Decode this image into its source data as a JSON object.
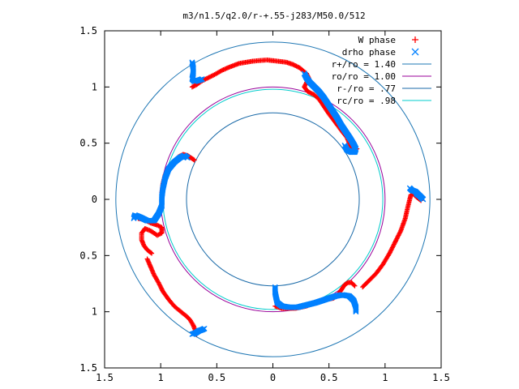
{
  "chart_data": {
    "type": "scatter",
    "title": "m3/n1.5/q2.0/r-+.55-j283/M50.0/512",
    "xlabel": "",
    "ylabel": "",
    "xlim": [
      -1.5,
      1.5
    ],
    "ylim": [
      -1.5,
      1.5
    ],
    "x_ticks": [
      -1.5,
      -1,
      -0.5,
      0,
      0.5,
      1,
      1.5
    ],
    "x_tick_labels": [
      "1.5",
      "1",
      "0.5",
      "0",
      "0.5",
      "1",
      "1.5"
    ],
    "y_ticks": [
      1.5,
      1,
      0.5,
      0,
      -0.5,
      -1,
      -1.5
    ],
    "y_tick_labels": [
      "1.5",
      "1",
      "0.5",
      "0",
      "0.5",
      "1",
      "1.5"
    ],
    "grid": false,
    "legend_position": "top-right",
    "colors": {
      "w_phase": "#ff0000",
      "drho_phase": "#0080ff",
      "r_plus": "#1f77b4",
      "r_o": "#990099",
      "r_minus": "#1a6aa8",
      "r_c": "#00cccc"
    },
    "circles": [
      {
        "label": "r+/ro = 1.40",
        "radius": 1.4,
        "color": "#1f77b4"
      },
      {
        "label": "ro/ro = 1.00",
        "radius": 1.0,
        "color": "#990099"
      },
      {
        "label": "r-/ro = .77",
        "radius": 0.77,
        "color": "#1a6aa8"
      },
      {
        "label": "rc/ro = .98",
        "radius": 0.98,
        "color": "#00cccc"
      }
    ],
    "series": [
      {
        "name": "W phase",
        "marker": "plus",
        "color": "#ff0000",
        "arms": [
          [
            [
              -0.72,
              1.0
            ],
            [
              -0.68,
              1.02
            ],
            [
              -0.64,
              1.05
            ],
            [
              -0.58,
              1.08
            ],
            [
              -0.52,
              1.11
            ],
            [
              -0.45,
              1.15
            ],
            [
              -0.38,
              1.18
            ],
            [
              -0.3,
              1.21
            ],
            [
              -0.18,
              1.23
            ],
            [
              -0.05,
              1.24
            ],
            [
              0.04,
              1.23
            ],
            [
              0.12,
              1.22
            ],
            [
              0.18,
              1.2
            ],
            [
              0.24,
              1.17
            ],
            [
              0.3,
              1.12
            ],
            [
              0.32,
              1.08
            ],
            [
              0.3,
              1.04
            ],
            [
              0.28,
              1.0
            ],
            [
              0.31,
              0.96
            ],
            [
              0.37,
              0.93
            ],
            [
              0.42,
              0.88
            ],
            [
              0.46,
              0.82
            ],
            [
              0.5,
              0.76
            ],
            [
              0.56,
              0.68
            ],
            [
              0.62,
              0.6
            ],
            [
              0.66,
              0.55
            ],
            [
              0.68,
              0.5
            ],
            [
              0.7,
              0.45
            ],
            [
              0.72,
              0.44
            ],
            [
              0.75,
              0.45
            ]
          ],
          [
            [
              0.73,
              -0.77
            ],
            [
              0.7,
              -0.74
            ],
            [
              0.67,
              -0.74
            ],
            [
              0.64,
              -0.76
            ],
            [
              0.62,
              -0.79
            ],
            [
              0.6,
              -0.82
            ],
            [
              0.58,
              -0.85
            ],
            [
              0.54,
              -0.88
            ],
            [
              0.48,
              -0.89
            ],
            [
              0.4,
              -0.91
            ],
            [
              0.3,
              -0.95
            ],
            [
              0.2,
              -0.97
            ],
            [
              0.08,
              -0.97
            ],
            [
              0.02,
              -0.95
            ]
          ],
          [
            [
              0.8,
              -0.78
            ],
            [
              0.86,
              -0.72
            ],
            [
              0.92,
              -0.66
            ],
            [
              0.98,
              -0.58
            ],
            [
              1.04,
              -0.48
            ],
            [
              1.09,
              -0.38
            ],
            [
              1.14,
              -0.28
            ],
            [
              1.18,
              -0.17
            ],
            [
              1.2,
              -0.08
            ],
            [
              1.22,
              0.0
            ],
            [
              1.23,
              0.04
            ],
            [
              1.25,
              0.05
            ],
            [
              1.28,
              0.02
            ],
            [
              1.32,
              -0.01
            ]
          ],
          [
            [
              -1.2,
              -0.17
            ],
            [
              -1.15,
              -0.18
            ],
            [
              -1.09,
              -0.21
            ],
            [
              -1.03,
              -0.23
            ],
            [
              -0.99,
              -0.25
            ],
            [
              -0.99,
              -0.3
            ],
            [
              -1.03,
              -0.32
            ],
            [
              -1.09,
              -0.28
            ],
            [
              -1.14,
              -0.26
            ],
            [
              -1.17,
              -0.3
            ],
            [
              -1.17,
              -0.36
            ],
            [
              -1.15,
              -0.41
            ],
            [
              -1.12,
              -0.45
            ],
            [
              -1.08,
              -0.48
            ]
          ],
          [
            [
              -1.12,
              -0.53
            ],
            [
              -1.09,
              -0.6
            ],
            [
              -1.06,
              -0.67
            ],
            [
              -1.02,
              -0.74
            ],
            [
              -0.98,
              -0.82
            ],
            [
              -0.93,
              -0.89
            ],
            [
              -0.88,
              -0.95
            ],
            [
              -0.82,
              -1.0
            ],
            [
              -0.77,
              -1.04
            ],
            [
              -0.74,
              -1.07
            ],
            [
              -0.71,
              -1.12
            ],
            [
              -0.69,
              -1.17
            ],
            [
              -0.68,
              -1.2
            ]
          ],
          [
            [
              -0.99,
              0.06
            ],
            [
              -0.98,
              0.14
            ],
            [
              -0.96,
              0.22
            ],
            [
              -0.93,
              0.28
            ],
            [
              -0.88,
              0.34
            ],
            [
              -0.84,
              0.38
            ],
            [
              -0.8,
              0.4
            ],
            [
              -0.76,
              0.39
            ],
            [
              -0.73,
              0.37
            ],
            [
              -0.7,
              0.35
            ]
          ]
        ]
      },
      {
        "name": "drho phase",
        "marker": "cross",
        "color": "#0080ff",
        "arms": [
          [
            [
              -0.72,
              1.22
            ],
            [
              -0.71,
              1.17
            ],
            [
              -0.71,
              1.12
            ],
            [
              -0.72,
              1.07
            ],
            [
              -0.7,
              1.05
            ],
            [
              -0.66,
              1.06
            ],
            [
              -0.63,
              1.07
            ]
          ],
          [
            [
              0.28,
              1.12
            ],
            [
              0.3,
              1.08
            ],
            [
              0.33,
              1.04
            ],
            [
              0.37,
              1.0
            ],
            [
              0.41,
              0.96
            ],
            [
              0.45,
              0.91
            ],
            [
              0.49,
              0.85
            ],
            [
              0.53,
              0.79
            ],
            [
              0.57,
              0.73
            ],
            [
              0.61,
              0.66
            ],
            [
              0.65,
              0.6
            ],
            [
              0.69,
              0.54
            ],
            [
              0.72,
              0.49
            ],
            [
              0.74,
              0.45
            ],
            [
              0.73,
              0.42
            ],
            [
              0.7,
              0.42
            ],
            [
              0.66,
              0.44
            ],
            [
              0.64,
              0.48
            ]
          ],
          [
            [
              -0.76,
              0.37
            ],
            [
              -0.79,
              0.39
            ],
            [
              -0.83,
              0.37
            ],
            [
              -0.88,
              0.33
            ],
            [
              -0.93,
              0.27
            ],
            [
              -0.96,
              0.19
            ],
            [
              -0.98,
              0.1
            ],
            [
              -0.99,
              0.02
            ],
            [
              -0.99,
              -0.06
            ],
            [
              -1.02,
              -0.13
            ],
            [
              -1.06,
              -0.19
            ],
            [
              -1.12,
              -0.19
            ],
            [
              -1.18,
              -0.16
            ],
            [
              -1.23,
              -0.14
            ],
            [
              -1.24,
              -0.17
            ]
          ],
          [
            [
              0.02,
              -0.78
            ],
            [
              0.02,
              -0.83
            ],
            [
              0.03,
              -0.88
            ],
            [
              0.04,
              -0.92
            ],
            [
              0.08,
              -0.95
            ],
            [
              0.14,
              -0.96
            ],
            [
              0.22,
              -0.96
            ],
            [
              0.3,
              -0.94
            ],
            [
              0.38,
              -0.92
            ],
            [
              0.44,
              -0.9
            ],
            [
              0.5,
              -0.88
            ],
            [
              0.56,
              -0.86
            ],
            [
              0.62,
              -0.85
            ],
            [
              0.68,
              -0.86
            ],
            [
              0.72,
              -0.9
            ],
            [
              0.74,
              -0.96
            ],
            [
              0.74,
              -1.0
            ]
          ],
          [
            [
              1.22,
              0.1
            ],
            [
              1.24,
              0.08
            ],
            [
              1.27,
              0.07
            ],
            [
              1.3,
              0.04
            ],
            [
              1.32,
              0.02
            ],
            [
              1.34,
              0.0
            ],
            [
              1.31,
              0.03
            ],
            [
              1.28,
              0.05
            ]
          ],
          [
            [
              -0.72,
              -1.2
            ],
            [
              -0.69,
              -1.19
            ],
            [
              -0.66,
              -1.17
            ],
            [
              -0.63,
              -1.16
            ],
            [
              -0.61,
              -1.15
            ]
          ]
        ]
      }
    ]
  }
}
